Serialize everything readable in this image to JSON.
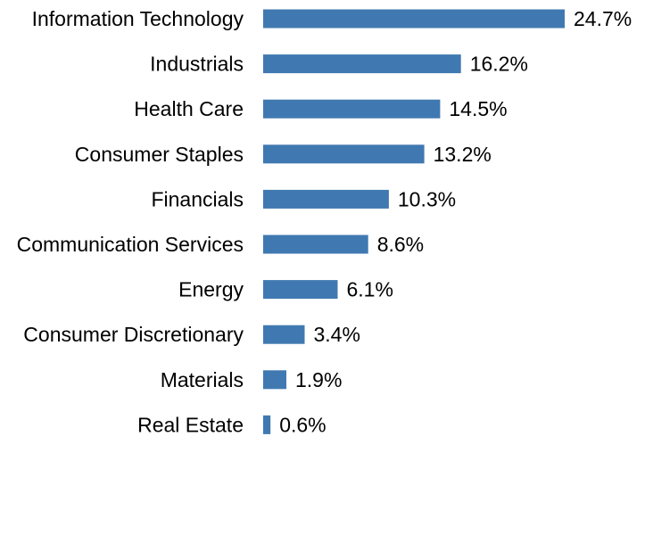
{
  "chart_data": {
    "type": "bar",
    "orientation": "horizontal",
    "title": "",
    "xlabel": "",
    "ylabel": "",
    "categories": [
      "Information Technology",
      "Industrials",
      "Health Care",
      "Consumer Staples",
      "Financials",
      "Communication Services",
      "Energy",
      "Consumer Discretionary",
      "Materials",
      "Real Estate"
    ],
    "values": [
      24.7,
      16.2,
      14.5,
      13.2,
      10.3,
      8.6,
      6.1,
      3.4,
      1.9,
      0.6
    ],
    "value_labels": [
      "24.7%",
      "16.2%",
      "14.5%",
      "13.2%",
      "10.3%",
      "8.6%",
      "6.1%",
      "3.4%",
      "1.9%",
      "0.6%"
    ],
    "xlim": [
      0,
      24.7
    ],
    "grid": false,
    "legend": "none",
    "bar_color": "#4079B1"
  }
}
